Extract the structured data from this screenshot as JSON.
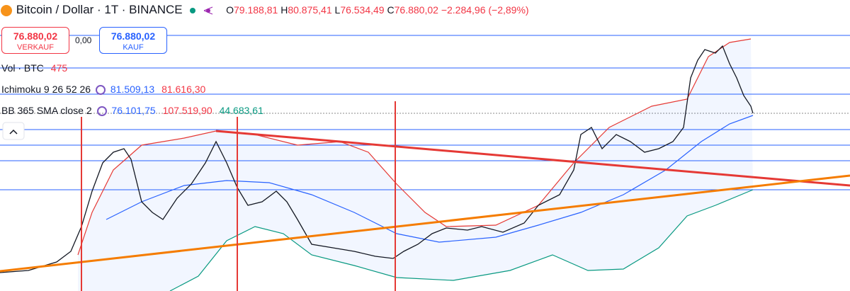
{
  "header": {
    "symbol": "Bitcoin / Dollar · 1T · BINANCE",
    "o_label": "O",
    "open": "79.188,81",
    "h_label": "H",
    "high": "80.875,41",
    "l_label": "L",
    "low": "76.534,49",
    "c_label": "C",
    "close": "76.880,02",
    "change": "−2.284,96 (−2,89%)"
  },
  "trade": {
    "sell_price": "76.880,02",
    "sell_label": "VERKAUF",
    "spread": "0,00",
    "buy_price": "76.880,02",
    "buy_label": "KAUF"
  },
  "indicators": {
    "volume": {
      "name": "Vol · BTC",
      "value": "475"
    },
    "ichimoku": {
      "name": "Ichimoku 9 26 52 26",
      "value1": "81.509,13",
      "value2": "81.616,30"
    },
    "bb": {
      "name": "BB 365 SMA close 2",
      "basis": "76.101,75",
      "upper": "107.519,90",
      "lower": "44.683,61"
    }
  }
}
